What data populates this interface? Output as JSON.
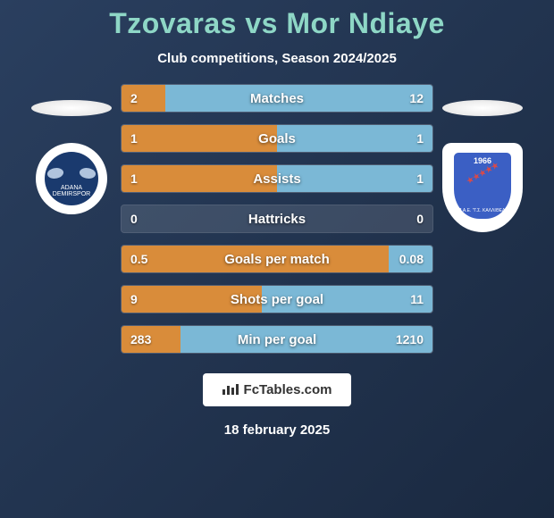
{
  "title": "Tzovaras vs Mor Ndiaye",
  "subtitle": "Club competitions, Season 2024/2025",
  "title_color": "#8ed7c6",
  "background_gradient": [
    "#2a3f5f",
    "#1a2940"
  ],
  "player_left": {
    "badge_bg": "#ffffff",
    "badge_inner_bg": "#1a3a6e",
    "badge_text": "ADANA DEMIRSPOR"
  },
  "player_right": {
    "badge_bg": "#ffffff",
    "badge_inner_bg": "#3b5fc4",
    "badge_year": "1966",
    "badge_text": "Π.Α.Ε. \"Γ.Σ. ΚΑΛΛΙΘΕΑ\""
  },
  "stats": [
    {
      "label": "Matches",
      "left_value": "2",
      "right_value": "12",
      "left_pct": 14,
      "right_pct": 86
    },
    {
      "label": "Goals",
      "left_value": "1",
      "right_value": "1",
      "left_pct": 50,
      "right_pct": 50
    },
    {
      "label": "Assists",
      "left_value": "1",
      "right_value": "1",
      "left_pct": 50,
      "right_pct": 50
    },
    {
      "label": "Hattricks",
      "left_value": "0",
      "right_value": "0",
      "left_pct": 0,
      "right_pct": 0
    },
    {
      "label": "Goals per match",
      "left_value": "0.5",
      "right_value": "0.08",
      "left_pct": 86,
      "right_pct": 14
    },
    {
      "label": "Shots per goal",
      "left_value": "9",
      "right_value": "11",
      "left_pct": 45,
      "right_pct": 55
    },
    {
      "label": "Min per goal",
      "left_value": "283",
      "right_value": "1210",
      "left_pct": 19,
      "right_pct": 81
    }
  ],
  "bar_color_left": "#d98c3a",
  "bar_color_right": "#7bb8d6",
  "footer_site": "FcTables.com",
  "footer_date": "18 february 2025"
}
